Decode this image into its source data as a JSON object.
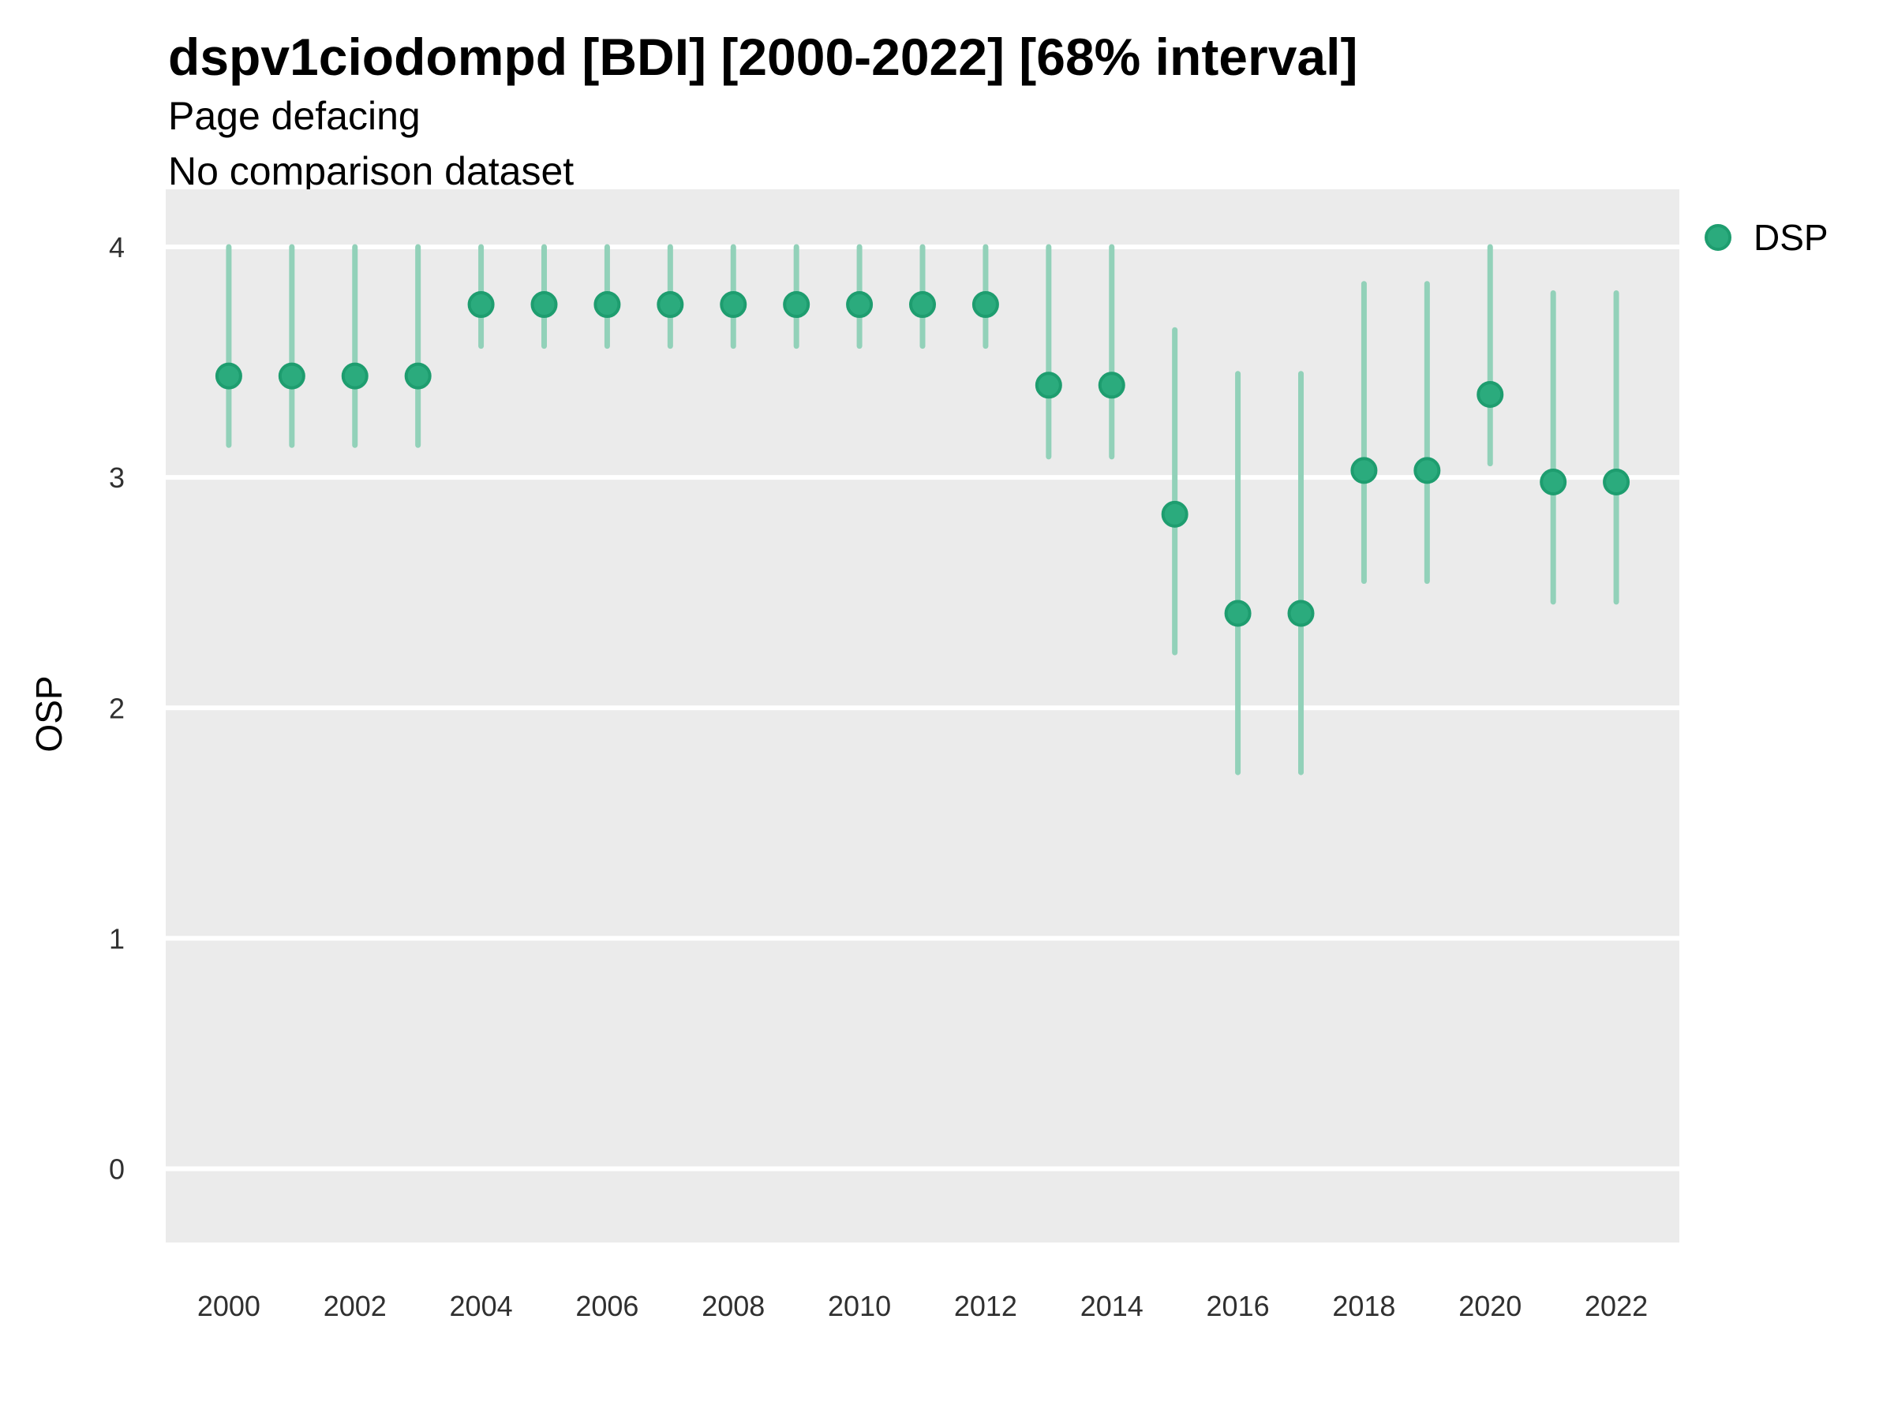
{
  "header": {
    "title": "dspv1ciodompd [BDI] [2000-2022] [68% interval]",
    "subtitle1": "Page defacing",
    "subtitle2": "No comparison dataset"
  },
  "legend": {
    "label": "DSP",
    "position": "right"
  },
  "colors": {
    "point_fill": "#2BAB7D",
    "point_stroke": "#1E9D6F",
    "interval_line": "#92D1B9",
    "panel_bg": "#EBEBEB",
    "gridline": "#FFFFFF",
    "title_text": "#000000",
    "tick_text": "#303030"
  },
  "chart_data": {
    "type": "scatter",
    "subtype": "pointrange",
    "title": "dspv1ciodompd [BDI] [2000-2022] [68% interval]",
    "subtitle": "Page defacing",
    "note": "No comparison dataset",
    "interval_label": "68% interval",
    "xlabel": "",
    "ylabel": "OSP",
    "legend_position": "right",
    "grid": "horizontal-major-only",
    "xlim": [
      1999,
      2023
    ],
    "ylim": [
      -0.32,
      4.25
    ],
    "x_ticks": [
      2000,
      2002,
      2004,
      2006,
      2008,
      2010,
      2012,
      2014,
      2016,
      2018,
      2020,
      2022
    ],
    "y_ticks": [
      0,
      1,
      2,
      3,
      4
    ],
    "series": [
      {
        "name": "DSP",
        "points": [
          {
            "year": 2000,
            "value": 3.44,
            "lo": 3.14,
            "hi": 4.0
          },
          {
            "year": 2001,
            "value": 3.44,
            "lo": 3.14,
            "hi": 4.0
          },
          {
            "year": 2002,
            "value": 3.44,
            "lo": 3.14,
            "hi": 4.0
          },
          {
            "year": 2003,
            "value": 3.44,
            "lo": 3.14,
            "hi": 4.0
          },
          {
            "year": 2004,
            "value": 3.75,
            "lo": 3.57,
            "hi": 4.0
          },
          {
            "year": 2005,
            "value": 3.75,
            "lo": 3.57,
            "hi": 4.0
          },
          {
            "year": 2006,
            "value": 3.75,
            "lo": 3.57,
            "hi": 4.0
          },
          {
            "year": 2007,
            "value": 3.75,
            "lo": 3.57,
            "hi": 4.0
          },
          {
            "year": 2008,
            "value": 3.75,
            "lo": 3.57,
            "hi": 4.0
          },
          {
            "year": 2009,
            "value": 3.75,
            "lo": 3.57,
            "hi": 4.0
          },
          {
            "year": 2010,
            "value": 3.75,
            "lo": 3.57,
            "hi": 4.0
          },
          {
            "year": 2011,
            "value": 3.75,
            "lo": 3.57,
            "hi": 4.0
          },
          {
            "year": 2012,
            "value": 3.75,
            "lo": 3.57,
            "hi": 4.0
          },
          {
            "year": 2013,
            "value": 3.4,
            "lo": 3.09,
            "hi": 4.0
          },
          {
            "year": 2014,
            "value": 3.4,
            "lo": 3.09,
            "hi": 4.0
          },
          {
            "year": 2015,
            "value": 2.84,
            "lo": 2.24,
            "hi": 3.64
          },
          {
            "year": 2016,
            "value": 2.41,
            "lo": 1.72,
            "hi": 3.45
          },
          {
            "year": 2017,
            "value": 2.41,
            "lo": 1.72,
            "hi": 3.45
          },
          {
            "year": 2018,
            "value": 3.03,
            "lo": 2.55,
            "hi": 3.84
          },
          {
            "year": 2019,
            "value": 3.03,
            "lo": 2.55,
            "hi": 3.84
          },
          {
            "year": 2020,
            "value": 3.36,
            "lo": 3.06,
            "hi": 4.0
          },
          {
            "year": 2021,
            "value": 2.98,
            "lo": 2.46,
            "hi": 3.8
          },
          {
            "year": 2022,
            "value": 2.98,
            "lo": 2.46,
            "hi": 3.8
          }
        ]
      }
    ]
  }
}
